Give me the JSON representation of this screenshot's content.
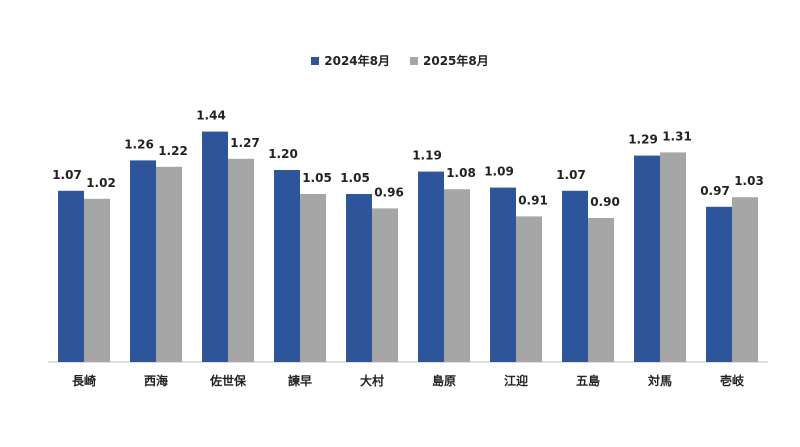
{
  "chart_data": {
    "type": "bar",
    "title": "",
    "xlabel": "",
    "ylabel": "",
    "ylim": [
      0,
      1.6
    ],
    "grid": false,
    "legend_position": "top-center",
    "categories": [
      "長崎",
      "西海",
      "佐世保",
      "諫早",
      "大村",
      "島原",
      "江迎",
      "五島",
      "対馬",
      "壱岐"
    ],
    "series": [
      {
        "name": "2024年8月",
        "color": "#2E5599",
        "values": [
          1.07,
          1.26,
          1.44,
          1.2,
          1.05,
          1.19,
          1.09,
          1.07,
          1.29,
          0.97
        ],
        "labels": [
          "1.07",
          "1.26",
          "1.44",
          "1.20",
          "1.05",
          "1.19",
          "1.09",
          "1.07",
          "1.29",
          "0.97"
        ]
      },
      {
        "name": "2025年8月",
        "color": "#A6A6A6",
        "values": [
          1.02,
          1.22,
          1.27,
          1.05,
          0.96,
          1.08,
          0.91,
          0.9,
          1.31,
          1.03
        ],
        "labels": [
          "1.02",
          "1.22",
          "1.27",
          "1.05",
          "0.96",
          "1.08",
          "0.91",
          "0.90",
          "1.31",
          "1.03"
        ]
      }
    ]
  }
}
